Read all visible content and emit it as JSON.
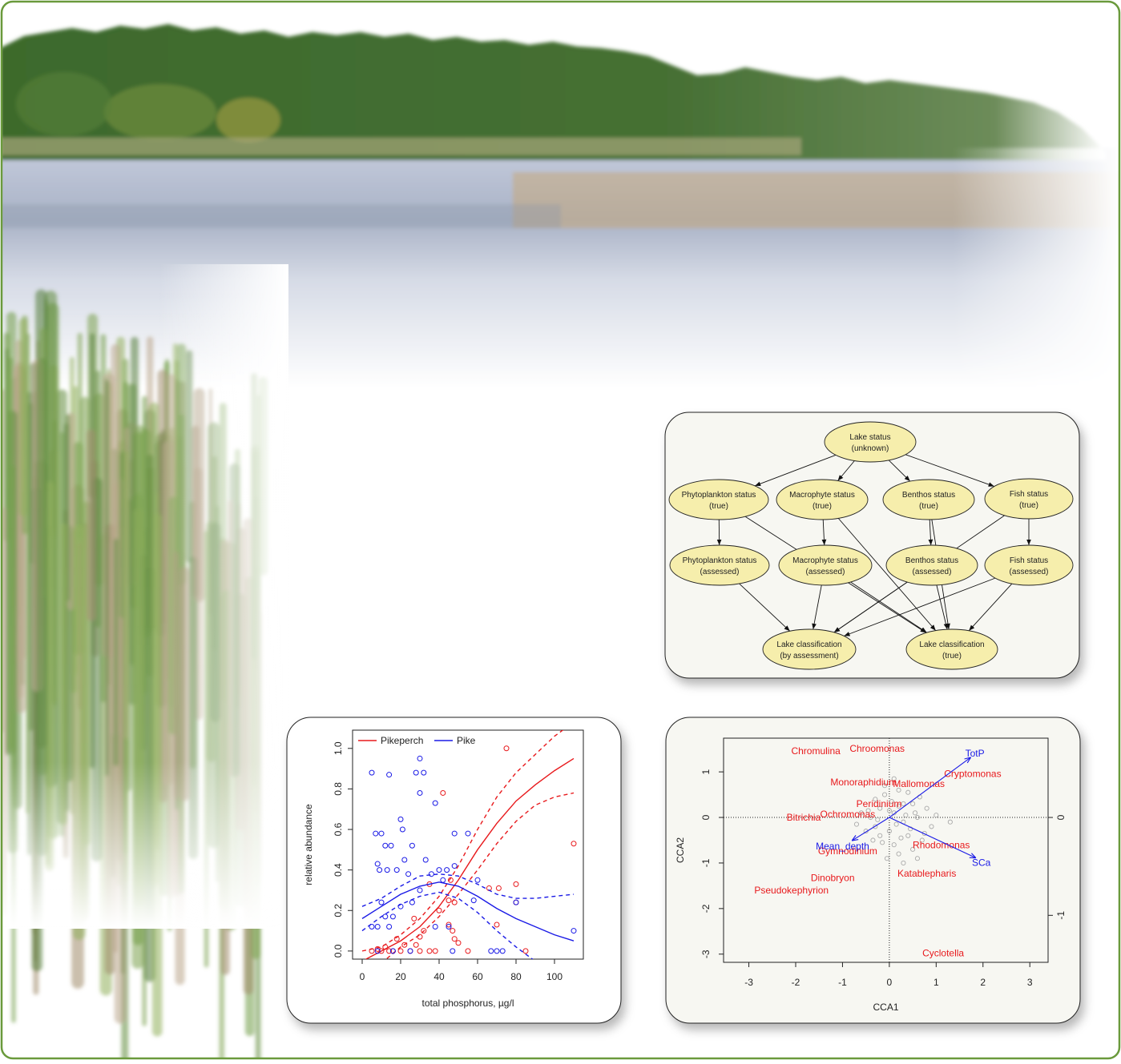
{
  "diagram": {
    "nodes": [
      {
        "label": "Lake status",
        "sub": "(unknown)"
      },
      {
        "label": "Phytoplankton status",
        "sub": "(true)"
      },
      {
        "label": "Macrophyte status",
        "sub": "(true)"
      },
      {
        "label": "Benthos status",
        "sub": "(true)"
      },
      {
        "label": "Fish status",
        "sub": "(true)"
      },
      {
        "label": "Phytoplankton status",
        "sub": "(assessed)"
      },
      {
        "label": "Macrophyte status",
        "sub": "(assessed)"
      },
      {
        "label": "Benthos status",
        "sub": "(assessed)"
      },
      {
        "label": "Fish status",
        "sub": "(assessed)"
      },
      {
        "label": "Lake classification",
        "sub": "(by assessment)"
      },
      {
        "label": "Lake classification",
        "sub": "(true)"
      }
    ],
    "edges": [
      [
        0,
        1
      ],
      [
        0,
        2
      ],
      [
        0,
        3
      ],
      [
        0,
        4
      ],
      [
        1,
        5
      ],
      [
        2,
        6
      ],
      [
        3,
        7
      ],
      [
        4,
        8
      ],
      [
        5,
        9
      ],
      [
        6,
        9
      ],
      [
        7,
        9
      ],
      [
        8,
        9
      ],
      [
        1,
        10
      ],
      [
        2,
        10
      ],
      [
        3,
        10
      ],
      [
        4,
        9
      ],
      [
        6,
        10
      ],
      [
        7,
        10
      ],
      [
        8,
        10
      ]
    ]
  },
  "chart_data": [
    {
      "type": "scatter",
      "x_label": "total phosphorus, µg/l",
      "y_label": "relative abundance",
      "xlim": [
        -5,
        115
      ],
      "xticks": [
        0,
        20,
        40,
        60,
        80,
        100
      ],
      "ylim": [
        -0.04,
        1.09
      ],
      "yticks": [
        {
          "value": 0,
          "label": "0.0"
        },
        0.2,
        0.4,
        0.6,
        0.8,
        {
          "value": 1,
          "label": "1.0"
        }
      ],
      "legend": "top-left",
      "series": [
        {
          "name": "Pikeperch",
          "color": "#e8191c",
          "x": [
            35,
            40,
            42,
            45,
            46,
            47,
            48,
            48,
            50,
            55,
            66,
            70,
            71,
            75,
            80,
            80,
            85,
            110,
            5,
            8,
            10,
            12,
            14,
            16,
            18,
            20,
            22,
            25,
            27,
            28,
            30,
            32,
            35,
            38,
            30,
            45
          ],
          "values": [
            0.33,
            0.2,
            0.78,
            0.13,
            0.35,
            0.1,
            0.06,
            0.24,
            0.04,
            0,
            0.31,
            0.13,
            0.31,
            1.0,
            0.33,
            0.24,
            0,
            0.53,
            0,
            0.01,
            0,
            0.02,
            0,
            0,
            0.06,
            0,
            0.03,
            0,
            0.16,
            0.03,
            0.07,
            0.1,
            0,
            0,
            0,
            0.25
          ],
          "fit": {
            "x": [
              0,
              10,
              20,
              30,
              40,
              50,
              60,
              70,
              80,
              90,
              100,
              110
            ],
            "values": [
              -0.05,
              0.0,
              0.05,
              0.12,
              0.22,
              0.35,
              0.5,
              0.63,
              0.74,
              0.82,
              0.89,
              0.95
            ]
          },
          "upper": {
            "x": [
              0,
              10,
              20,
              30,
              40,
              50,
              60,
              70,
              80,
              90,
              100,
              110
            ],
            "values": [
              0.0,
              0.02,
              0.08,
              0.16,
              0.27,
              0.42,
              0.6,
              0.76,
              0.88,
              0.97,
              1.06,
              1.13
            ]
          },
          "lower": {
            "x": [
              10,
              20,
              30,
              40,
              50,
              60,
              70,
              80,
              90,
              100,
              110
            ],
            "values": [
              -0.06,
              0.02,
              0.08,
              0.17,
              0.28,
              0.4,
              0.53,
              0.64,
              0.72,
              0.76,
              0.78
            ]
          }
        },
        {
          "name": "Pike",
          "color": "#1a1ae6",
          "x": [
            5,
            7,
            8,
            9,
            10,
            12,
            13,
            14,
            15,
            16,
            18,
            20,
            21,
            22,
            24,
            26,
            28,
            30,
            30,
            32,
            33,
            36,
            38,
            40,
            42,
            44,
            45,
            48,
            48,
            55,
            58,
            60,
            67,
            70,
            73,
            80,
            110,
            5,
            8,
            10,
            12,
            14,
            20,
            26,
            30,
            38,
            47,
            8,
            16,
            25
          ],
          "values": [
            0.88,
            0.58,
            0.43,
            0.4,
            0.58,
            0.52,
            0.4,
            0.87,
            0.52,
            0.17,
            0.4,
            0.65,
            0.6,
            0.45,
            0.38,
            0.52,
            0.88,
            0.95,
            0.78,
            0.88,
            0.45,
            0.38,
            0.73,
            0.4,
            0.35,
            0.4,
            0.12,
            0.58,
            0.42,
            0.58,
            0.25,
            0.35,
            0,
            0,
            0,
            0.24,
            0.1,
            0.12,
            0.12,
            0.24,
            0.17,
            0.12,
            0.22,
            0.24,
            0.3,
            0.12,
            0,
            0,
            0,
            0
          ],
          "fit": {
            "x": [
              0,
              10,
              20,
              30,
              40,
              50,
              60,
              70,
              80,
              90,
              100,
              110
            ],
            "values": [
              0.16,
              0.22,
              0.28,
              0.32,
              0.34,
              0.32,
              0.27,
              0.21,
              0.16,
              0.12,
              0.08,
              0.05
            ]
          },
          "upper": {
            "x": [
              0,
              10,
              20,
              30,
              40,
              50,
              60,
              70,
              80,
              90,
              100,
              110
            ],
            "values": [
              0.22,
              0.26,
              0.32,
              0.37,
              0.38,
              0.37,
              0.33,
              0.28,
              0.26,
              0.26,
              0.27,
              0.28
            ]
          },
          "lower": {
            "x": [
              0,
              10,
              20,
              30,
              40,
              50,
              60,
              70,
              80,
              90
            ],
            "values": [
              0.1,
              0.17,
              0.23,
              0.27,
              0.29,
              0.26,
              0.19,
              0.1,
              0.02,
              -0.05
            ]
          }
        }
      ]
    },
    {
      "type": "biplot",
      "x_label": "CCA1",
      "y_label": "CCA2",
      "xlim": [
        -3.54,
        3.39
      ],
      "xticks": [
        -3,
        -2,
        -1,
        0,
        1,
        2,
        3
      ],
      "ylim": [
        -3.18,
        1.74
      ],
      "yticks": [
        -3,
        -2,
        -1,
        0,
        1
      ],
      "y2lim": [
        -1.48,
        0.81
      ],
      "y2ticks": [
        -1,
        0
      ],
      "sites": {
        "color": "#aaaaaa",
        "x": [
          0.1,
          -0.2,
          0.3,
          -0.4,
          0.5,
          0.0,
          -0.1,
          0.2,
          0.4,
          -0.3,
          0.6,
          -0.6,
          0.7,
          0.1,
          -0.2,
          0.3,
          0.0,
          -0.5,
          0.8,
          0.2,
          -0.1,
          0.5,
          -0.3,
          0.9,
          0.35,
          -0.45,
          0.15,
          0.65,
          -0.15,
          0.45,
          0.05,
          -0.25,
          0.55,
          0.25,
          -0.05,
          0.75,
          -0.35,
          0.4,
          0.1,
          1.0,
          -0.7,
          0.3,
          0.6,
          0.2,
          1.3
        ],
        "values": [
          0.1,
          0.2,
          -0.1,
          0.0,
          0.3,
          -0.3,
          0.5,
          0.6,
          -0.4,
          -0.2,
          0.0,
          0.1,
          -0.5,
          -0.6,
          -0.4,
          0.3,
          0.15,
          -0.3,
          0.2,
          -0.8,
          0.7,
          -0.7,
          0.4,
          -0.2,
          0.05,
          0.15,
          -0.15,
          0.45,
          -0.55,
          -0.25,
          0.35,
          -0.05,
          0.1,
          -0.45,
          -0.9,
          -0.35,
          -0.5,
          0.55,
          0.85,
          0.05,
          -0.15,
          -1.0,
          -0.9,
          0.25,
          -0.1
        ]
      },
      "species": {
        "color": "#e8191c",
        "names": [
          "Chromulina",
          "Chroomonas",
          "Monoraphidium",
          "Mallomonas",
          "Cryptomonas",
          "Peridinium",
          "Ochromonas",
          "Bitrichia",
          "Gymnodinium",
          "Rhodomonas",
          "Katablepharis",
          "Dinobryon",
          "Pseudokephyrion",
          "Cyclotella"
        ],
        "x": [
          -1.57,
          -0.26,
          -0.55,
          0.63,
          1.78,
          -0.22,
          -0.89,
          -1.83,
          -0.89,
          1.11,
          0.8,
          -1.21,
          -2.09,
          1.15
        ],
        "values": [
          1.46,
          1.51,
          0.77,
          0.74,
          0.96,
          0.3,
          0.07,
          0,
          -0.74,
          -0.61,
          -1.23,
          -1.33,
          -1.6,
          -2.98
        ]
      },
      "arrows": {
        "color": "#1a1ae6",
        "names": [
          "TotP",
          "SCa",
          "Mean_depth"
        ],
        "x": [
          1.74,
          1.85,
          -0.8
        ],
        "values": [
          1.32,
          -0.89,
          -0.51
        ]
      }
    }
  ]
}
